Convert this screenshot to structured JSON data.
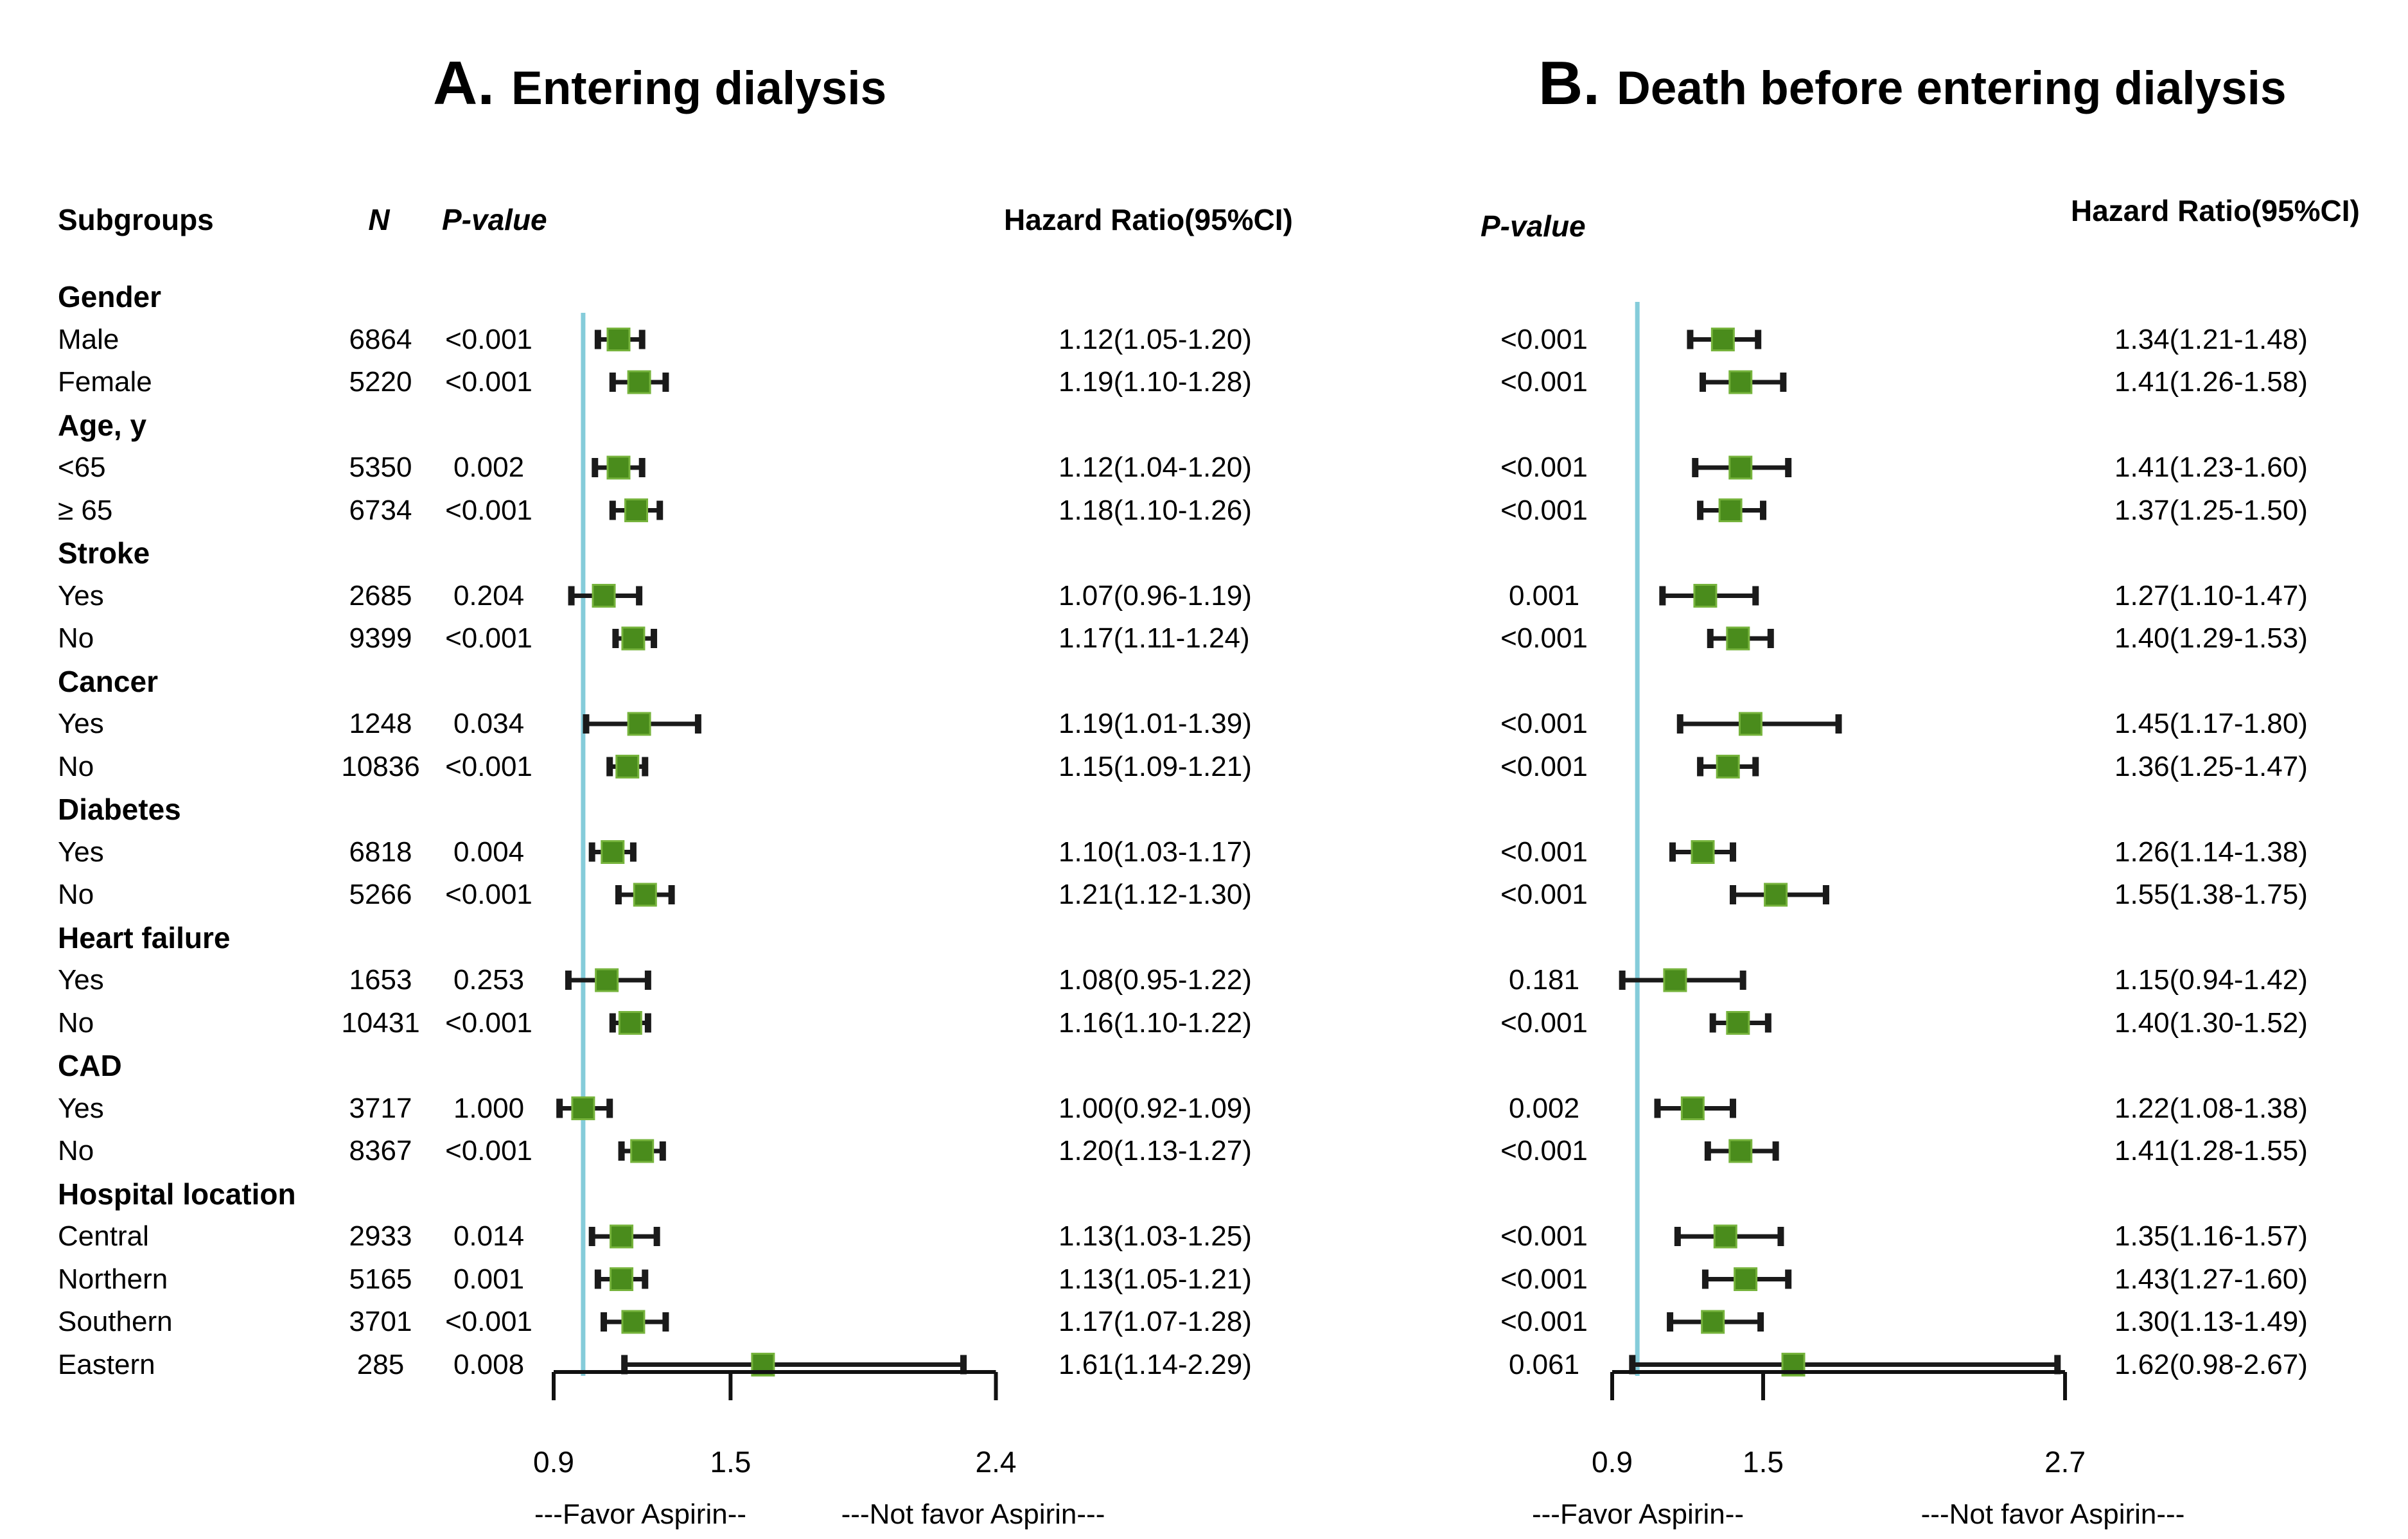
{
  "figure": {
    "headers": {
      "subgroups": "Subgroups",
      "n": "N",
      "p_value": "P-value",
      "hazard_ratio": "Hazard Ratio(95%CI)"
    }
  },
  "chart_data": {
    "type": "forest",
    "layout": "two-panel forest plot, shared subgroup/N columns at left, grid off, null line at 1.0",
    "marker_color": "#4a8c1c",
    "marker_edge_color": "#76b33c",
    "null_line_color": "#85ccda",
    "ci_color": "#1a1a1a",
    "panels": [
      {
        "label": "A.",
        "title": "Entering dialysis",
        "p_header": "P-value",
        "hr_header": "Hazard Ratio(95%CI)",
        "null_line": 1.0,
        "axis_ticks": [
          0.9,
          1.5,
          2.4
        ],
        "axis_tick_labels": [
          "0.9",
          "1.5",
          "2.4"
        ],
        "axis_range": [
          0.9,
          2.4
        ],
        "favor_left": "---Favor Aspirin--",
        "favor_right": "---Not favor Aspirin---"
      },
      {
        "label": "B.",
        "title": "Death before entering dialysis",
        "p_header": "P-value",
        "hr_header": "Hazard Ratio(95%CI)",
        "null_line": 1.0,
        "axis_ticks": [
          0.9,
          1.5,
          2.7
        ],
        "axis_tick_labels": [
          "0.9",
          "1.5",
          "2.7"
        ],
        "axis_range": [
          0.9,
          2.7
        ],
        "favor_left": "---Favor Aspirin--",
        "favor_right": "---Not favor Aspirin---"
      }
    ],
    "rows": [
      {
        "type": "group",
        "label": "Gender"
      },
      {
        "type": "item",
        "label": "Male",
        "n": "6864",
        "a": {
          "p": "<0.001",
          "hr": 1.12,
          "lo": 1.05,
          "hi": 1.2,
          "text": "1.12(1.05-1.20)"
        },
        "b": {
          "p": "<0.001",
          "hr": 1.34,
          "lo": 1.21,
          "hi": 1.48,
          "text": "1.34(1.21-1.48)"
        }
      },
      {
        "type": "item",
        "label": "Female",
        "n": "5220",
        "a": {
          "p": "<0.001",
          "hr": 1.19,
          "lo": 1.1,
          "hi": 1.28,
          "text": "1.19(1.10-1.28)"
        },
        "b": {
          "p": "<0.001",
          "hr": 1.41,
          "lo": 1.26,
          "hi": 1.58,
          "text": "1.41(1.26-1.58)"
        }
      },
      {
        "type": "group",
        "label": "Age, y"
      },
      {
        "type": "item",
        "label": "<65",
        "n": "5350",
        "a": {
          "p": "0.002",
          "hr": 1.12,
          "lo": 1.04,
          "hi": 1.2,
          "text": "1.12(1.04-1.20)"
        },
        "b": {
          "p": "<0.001",
          "hr": 1.41,
          "lo": 1.23,
          "hi": 1.6,
          "text": "1.41(1.23-1.60)"
        }
      },
      {
        "type": "item",
        "label": "≥ 65",
        "n": "6734",
        "a": {
          "p": "<0.001",
          "hr": 1.18,
          "lo": 1.1,
          "hi": 1.26,
          "text": "1.18(1.10-1.26)"
        },
        "b": {
          "p": "<0.001",
          "hr": 1.37,
          "lo": 1.25,
          "hi": 1.5,
          "text": "1.37(1.25-1.50)"
        }
      },
      {
        "type": "group",
        "label": "Stroke"
      },
      {
        "type": "item",
        "label": "Yes",
        "n": "2685",
        "a": {
          "p": "0.204",
          "hr": 1.07,
          "lo": 0.96,
          "hi": 1.19,
          "text": "1.07(0.96-1.19)"
        },
        "b": {
          "p": "0.001",
          "hr": 1.27,
          "lo": 1.1,
          "hi": 1.47,
          "text": "1.27(1.10-1.47)"
        }
      },
      {
        "type": "item",
        "label": "No",
        "n": "9399",
        "a": {
          "p": "<0.001",
          "hr": 1.17,
          "lo": 1.11,
          "hi": 1.24,
          "text": "1.17(1.11-1.24)"
        },
        "b": {
          "p": "<0.001",
          "hr": 1.4,
          "lo": 1.29,
          "hi": 1.53,
          "text": "1.40(1.29-1.53)"
        }
      },
      {
        "type": "group",
        "label": "Cancer"
      },
      {
        "type": "item",
        "label": "Yes",
        "n": "1248",
        "a": {
          "p": "0.034",
          "hr": 1.19,
          "lo": 1.01,
          "hi": 1.39,
          "text": "1.19(1.01-1.39)"
        },
        "b": {
          "p": "<0.001",
          "hr": 1.45,
          "lo": 1.17,
          "hi": 1.8,
          "text": "1.45(1.17-1.80)"
        }
      },
      {
        "type": "item",
        "label": "No",
        "n": "10836",
        "a": {
          "p": "<0.001",
          "hr": 1.15,
          "lo": 1.09,
          "hi": 1.21,
          "text": "1.15(1.09-1.21)"
        },
        "b": {
          "p": "<0.001",
          "hr": 1.36,
          "lo": 1.25,
          "hi": 1.47,
          "text": "1.36(1.25-1.47)"
        }
      },
      {
        "type": "group",
        "label": "Diabetes"
      },
      {
        "type": "item",
        "label": "Yes",
        "n": "6818",
        "a": {
          "p": "0.004",
          "hr": 1.1,
          "lo": 1.03,
          "hi": 1.17,
          "text": "1.10(1.03-1.17)"
        },
        "b": {
          "p": "<0.001",
          "hr": 1.26,
          "lo": 1.14,
          "hi": 1.38,
          "text": "1.26(1.14-1.38)"
        }
      },
      {
        "type": "item",
        "label": "No",
        "n": "5266",
        "a": {
          "p": "<0.001",
          "hr": 1.21,
          "lo": 1.12,
          "hi": 1.3,
          "text": "1.21(1.12-1.30)"
        },
        "b": {
          "p": "<0.001",
          "hr": 1.55,
          "lo": 1.38,
          "hi": 1.75,
          "text": "1.55(1.38-1.75)"
        }
      },
      {
        "type": "group",
        "label": "Heart failure"
      },
      {
        "type": "item",
        "label": "Yes",
        "n": "1653",
        "a": {
          "p": "0.253",
          "hr": 1.08,
          "lo": 0.95,
          "hi": 1.22,
          "text": "1.08(0.95-1.22)"
        },
        "b": {
          "p": "0.181",
          "hr": 1.15,
          "lo": 0.94,
          "hi": 1.42,
          "text": "1.15(0.94-1.42)"
        }
      },
      {
        "type": "item",
        "label": "No",
        "n": "10431",
        "a": {
          "p": "<0.001",
          "hr": 1.16,
          "lo": 1.1,
          "hi": 1.22,
          "text": "1.16(1.10-1.22)"
        },
        "b": {
          "p": "<0.001",
          "hr": 1.4,
          "lo": 1.3,
          "hi": 1.52,
          "text": "1.40(1.30-1.52)"
        }
      },
      {
        "type": "group",
        "label": "CAD"
      },
      {
        "type": "item",
        "label": "Yes",
        "n": "3717",
        "a": {
          "p": "1.000",
          "hr": 1.0,
          "lo": 0.92,
          "hi": 1.09,
          "text": "1.00(0.92-1.09)"
        },
        "b": {
          "p": "0.002",
          "hr": 1.22,
          "lo": 1.08,
          "hi": 1.38,
          "text": "1.22(1.08-1.38)"
        }
      },
      {
        "type": "item",
        "label": "No",
        "n": "8367",
        "a": {
          "p": "<0.001",
          "hr": 1.2,
          "lo": 1.13,
          "hi": 1.27,
          "text": "1.20(1.13-1.27)"
        },
        "b": {
          "p": "<0.001",
          "hr": 1.41,
          "lo": 1.28,
          "hi": 1.55,
          "text": "1.41(1.28-1.55)"
        }
      },
      {
        "type": "group",
        "label": "Hospital location"
      },
      {
        "type": "item",
        "label": "Central",
        "n": "2933",
        "a": {
          "p": "0.014",
          "hr": 1.13,
          "lo": 1.03,
          "hi": 1.25,
          "text": "1.13(1.03-1.25)"
        },
        "b": {
          "p": "<0.001",
          "hr": 1.35,
          "lo": 1.16,
          "hi": 1.57,
          "text": "1.35(1.16-1.57)"
        }
      },
      {
        "type": "item",
        "label": "Northern",
        "n": "5165",
        "a": {
          "p": "0.001",
          "hr": 1.13,
          "lo": 1.05,
          "hi": 1.21,
          "text": "1.13(1.05-1.21)"
        },
        "b": {
          "p": "<0.001",
          "hr": 1.43,
          "lo": 1.27,
          "hi": 1.6,
          "text": "1.43(1.27-1.60)"
        }
      },
      {
        "type": "item",
        "label": "Southern",
        "n": "3701",
        "a": {
          "p": "<0.001",
          "hr": 1.17,
          "lo": 1.07,
          "hi": 1.28,
          "text": "1.17(1.07-1.28)"
        },
        "b": {
          "p": "<0.001",
          "hr": 1.3,
          "lo": 1.13,
          "hi": 1.49,
          "text": "1.30(1.13-1.49)"
        }
      },
      {
        "type": "item",
        "label": "Eastern",
        "n": "285",
        "a": {
          "p": "0.008",
          "hr": 1.61,
          "lo": 1.14,
          "hi": 2.29,
          "text": "1.61(1.14-2.29)"
        },
        "b": {
          "p": "0.061",
          "hr": 1.62,
          "lo": 0.98,
          "hi": 2.67,
          "text": "1.62(0.98-2.67)"
        }
      }
    ]
  }
}
